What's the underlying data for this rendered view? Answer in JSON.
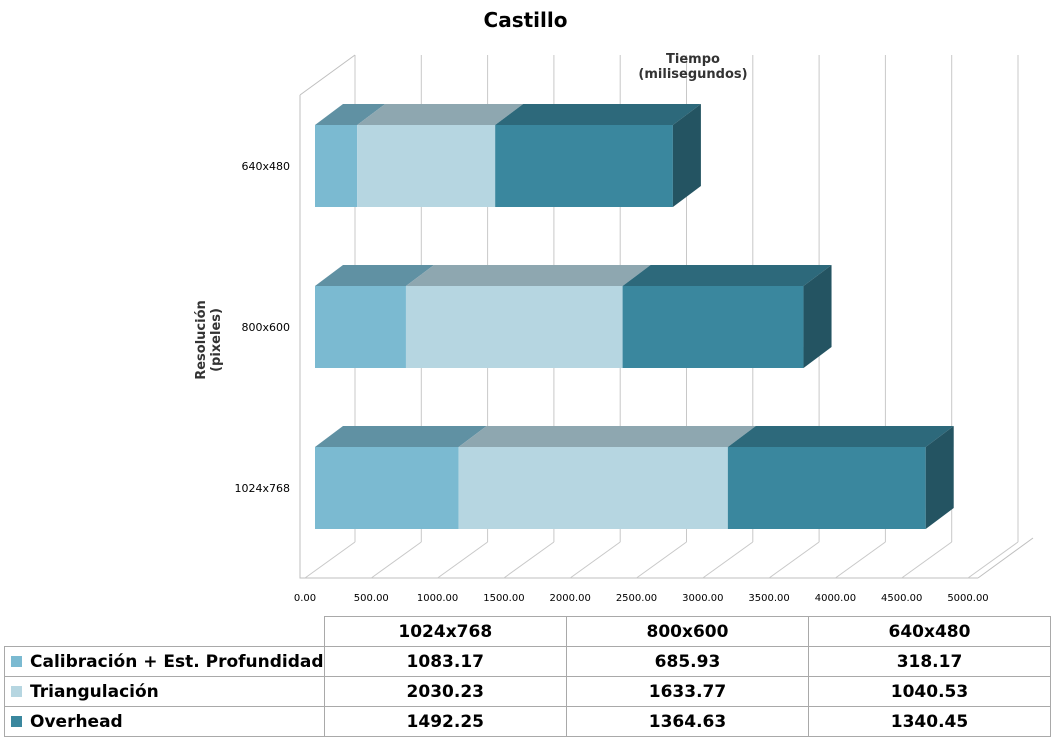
{
  "chart_data": {
    "type": "bar",
    "orientation": "horizontal",
    "stacked": true,
    "three_d": true,
    "title": "Castillo",
    "xlabel": "Tiempo\n(milisegundos)",
    "ylabel": "Resolución\n(pixeles)",
    "xlim": [
      0,
      5000
    ],
    "x_ticks": [
      "0.00",
      "500.00",
      "1000.00",
      "1500.00",
      "2000.00",
      "2500.00",
      "3000.00",
      "3500.00",
      "4000.00",
      "4500.00",
      "5000.00"
    ],
    "categories": [
      "1024x768",
      "800x600",
      "640x480"
    ],
    "series": [
      {
        "name": "Calibración + Est. Profundidad",
        "values": [
          1083.17,
          685.93,
          318.17
        ],
        "value_labels": [
          "1083.17",
          "685.93",
          "318.17"
        ],
        "color": "#7bbad1"
      },
      {
        "name": "Triangulación",
        "values": [
          2030.23,
          1633.77,
          1040.53
        ],
        "value_labels": [
          "2030.23",
          "1633.77",
          "1040.53"
        ],
        "color": "#b6d6e1"
      },
      {
        "name": "Overhead",
        "values": [
          1492.25,
          1364.63,
          1340.45
        ],
        "value_labels": [
          "1492.25",
          "1364.63",
          "1340.45"
        ],
        "color": "#3a879e"
      }
    ],
    "grid": true,
    "legend": "data-table"
  }
}
